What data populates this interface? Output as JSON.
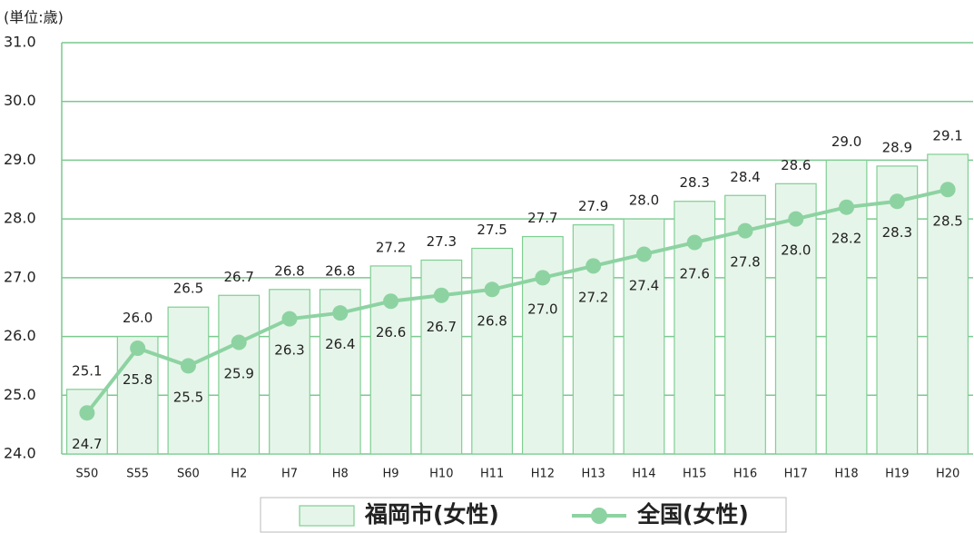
{
  "chart_data": {
    "type": "bar",
    "y_label": "(単位:歳)",
    "categories": [
      "S50",
      "S55",
      "S60",
      "H2",
      "H7",
      "H8",
      "H9",
      "H10",
      "H11",
      "H12",
      "H13",
      "H14",
      "H15",
      "H16",
      "H17",
      "H18",
      "H19",
      "H20"
    ],
    "series": [
      {
        "name": "福岡市(女性)",
        "type": "bar",
        "color": "#e6f5e9",
        "values": [
          25.1,
          26.0,
          26.5,
          26.7,
          26.8,
          26.8,
          27.2,
          27.3,
          27.5,
          27.7,
          27.9,
          28.0,
          28.3,
          28.4,
          28.6,
          29.0,
          28.9,
          29.1
        ],
        "value_labels": [
          "25.1",
          "26.0",
          "26.5",
          "26.7",
          "26.8",
          "26.8",
          "27.2",
          "27.3",
          "27.5",
          "27.7",
          "27.9",
          "28.0",
          "28.3",
          "28.4",
          "28.6",
          "29.0",
          "28.9",
          "29.1"
        ]
      },
      {
        "name": "全国(女性)",
        "type": "line",
        "color": "#8dd3a2",
        "values": [
          24.7,
          25.8,
          25.5,
          25.9,
          26.3,
          26.4,
          26.6,
          26.7,
          26.8,
          27.0,
          27.2,
          27.4,
          27.6,
          27.8,
          28.0,
          28.2,
          28.3,
          28.5
        ],
        "value_labels": [
          "24.7",
          "25.8",
          "25.5",
          "25.9",
          "26.3",
          "26.4",
          "26.6",
          "26.7",
          "26.8",
          "27.0",
          "27.2",
          "27.4",
          "27.6",
          "27.8",
          "28.0",
          "28.2",
          "28.3",
          "28.5"
        ]
      }
    ],
    "ylim": [
      24,
      31
    ],
    "yticks": [
      {
        "value": 24,
        "label": "24.0"
      },
      {
        "value": 25,
        "label": "25.0"
      },
      {
        "value": 26,
        "label": "26.0"
      },
      {
        "value": 27,
        "label": "27.0"
      },
      {
        "value": 28,
        "label": "28.0"
      },
      {
        "value": 29,
        "label": "29.0"
      },
      {
        "value": 30,
        "label": "30.0"
      },
      {
        "value": 31,
        "label": "31.0"
      }
    ],
    "grid": true,
    "legend": "bottom"
  }
}
